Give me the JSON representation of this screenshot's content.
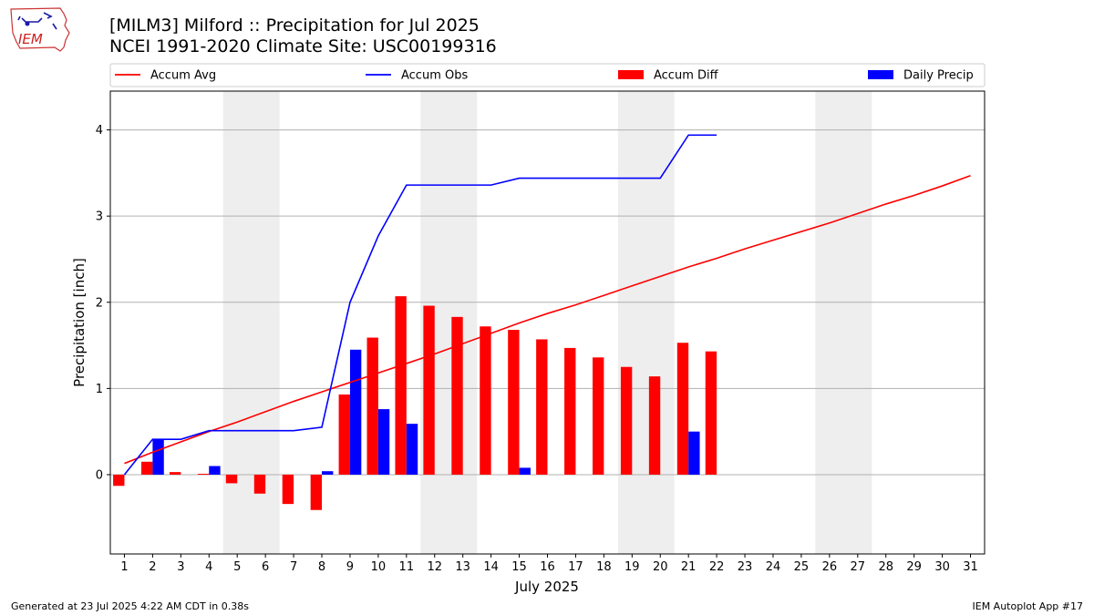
{
  "header": {
    "logo_text": "IEM",
    "title_line1": "[MILM3] Milford :: Precipitation for Jul 2025",
    "title_line2": "NCEI 1991-2020 Climate Site: USC00199316"
  },
  "footer": {
    "left": "Generated at 23 Jul 2025 4:22 AM CDT in 0.38s",
    "right": "IEM Autoplot App #17"
  },
  "chart_data": {
    "type": "bar",
    "xlabel": "July 2025",
    "ylabel": "Precipitation [inch]",
    "xlim": [
      0.5,
      31.5
    ],
    "ylim": [
      -0.92,
      4.45
    ],
    "x_ticks": [
      1,
      2,
      3,
      4,
      5,
      6,
      7,
      8,
      9,
      10,
      11,
      12,
      13,
      14,
      15,
      16,
      17,
      18,
      19,
      20,
      21,
      22,
      23,
      24,
      25,
      26,
      27,
      28,
      29,
      30,
      31
    ],
    "y_ticks": [
      0,
      1,
      2,
      3,
      4
    ],
    "grid": "y",
    "legend_position": "top",
    "weekend_shading": [
      [
        4.5,
        6.5
      ],
      [
        11.5,
        13.5
      ],
      [
        18.5,
        20.5
      ],
      [
        25.5,
        27.5
      ]
    ],
    "series": [
      {
        "name": "Accum Avg",
        "kind": "line",
        "color": "#ff0000",
        "x": [
          1,
          2,
          3,
          4,
          5,
          6,
          7,
          8,
          9,
          10,
          11,
          12,
          13,
          14,
          15,
          16,
          17,
          18,
          19,
          20,
          21,
          22,
          23,
          24,
          25,
          26,
          27,
          28,
          29,
          30,
          31
        ],
        "values": [
          0.13,
          0.26,
          0.38,
          0.5,
          0.61,
          0.73,
          0.85,
          0.96,
          1.07,
          1.18,
          1.29,
          1.4,
          1.52,
          1.64,
          1.76,
          1.87,
          1.97,
          2.08,
          2.19,
          2.3,
          2.41,
          2.51,
          2.62,
          2.72,
          2.82,
          2.92,
          3.03,
          3.14,
          3.24,
          3.35,
          3.47
        ]
      },
      {
        "name": "Accum Obs",
        "kind": "line",
        "color": "#0000ff",
        "x": [
          1,
          2,
          3,
          4,
          5,
          6,
          7,
          8,
          9,
          10,
          11,
          12,
          13,
          14,
          15,
          16,
          17,
          18,
          19,
          20,
          21,
          22
        ],
        "values": [
          0.0,
          0.41,
          0.41,
          0.51,
          0.51,
          0.51,
          0.51,
          0.55,
          2.0,
          2.77,
          3.36,
          3.36,
          3.36,
          3.36,
          3.44,
          3.44,
          3.44,
          3.44,
          3.44,
          3.44,
          3.94,
          3.94
        ]
      },
      {
        "name": "Accum Diff",
        "kind": "bar",
        "color": "#ff0000",
        "x": [
          1,
          2,
          3,
          4,
          5,
          6,
          7,
          8,
          9,
          10,
          11,
          12,
          13,
          14,
          15,
          16,
          17,
          18,
          19,
          20,
          21,
          22
        ],
        "values": [
          -0.13,
          0.15,
          0.03,
          0.01,
          -0.1,
          -0.22,
          -0.34,
          -0.41,
          0.93,
          1.59,
          2.07,
          1.96,
          1.83,
          1.72,
          1.68,
          1.57,
          1.47,
          1.36,
          1.25,
          1.14,
          1.53,
          1.43
        ]
      },
      {
        "name": "Daily Precip",
        "kind": "bar",
        "color": "#0000ff",
        "x": [
          1,
          2,
          3,
          4,
          5,
          6,
          7,
          8,
          9,
          10,
          11,
          12,
          13,
          14,
          15,
          16,
          17,
          18,
          19,
          20,
          21,
          22
        ],
        "values": [
          0,
          0.41,
          0,
          0.1,
          0,
          0,
          0,
          0.04,
          1.45,
          0.76,
          0.59,
          0,
          0,
          0,
          0.08,
          0,
          0,
          0,
          0,
          0,
          0.5,
          0
        ]
      }
    ]
  }
}
